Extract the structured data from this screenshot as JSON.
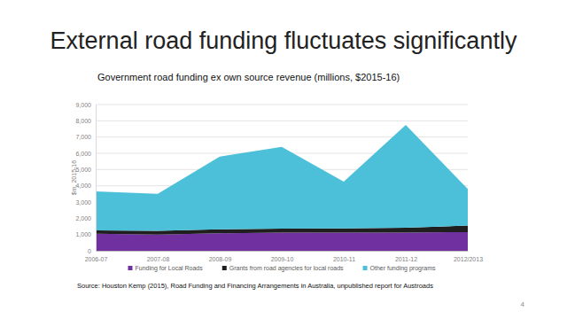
{
  "slide": {
    "title": "External road funding fluctuates significantly",
    "source": "Source: Houston Kemp (2015), Road Funding and Financing Arrangements in Australia, unpublished report for Austroads",
    "page_number": 4
  },
  "chart_data": {
    "type": "area",
    "title": "Government road funding ex own source revenue (millions, $2015-16)",
    "y_label": "$m, 2015-16",
    "categories": [
      "2006-07",
      "2007-08",
      "2008-09",
      "2009-10",
      "2010-11",
      "2011-12",
      "2012/2013"
    ],
    "series": [
      {
        "name": "Funding for Local Roads",
        "color": "#7030a0",
        "values": [
          1050,
          1000,
          1080,
          1120,
          1120,
          1120,
          1150
        ]
      },
      {
        "name": "Grants from road agencies for local roads",
        "color": "#1f1f1f",
        "values": [
          200,
          230,
          240,
          250,
          260,
          300,
          400
        ]
      },
      {
        "name": "Other funding programs",
        "color": "#4bc0d8",
        "values": [
          2400,
          2270,
          4480,
          5030,
          2870,
          6330,
          2250
        ]
      }
    ],
    "stacked": true,
    "grid": true,
    "legend": "bottom",
    "ylim": [
      0,
      9000
    ],
    "yticks": [
      0,
      {
        "value": 1000,
        "label": "1,000"
      },
      {
        "value": 2000,
        "label": "2,000"
      },
      {
        "value": 3000,
        "label": "3,000"
      },
      {
        "value": 4000,
        "label": "4,000"
      },
      {
        "value": 5000,
        "label": "5,000"
      },
      {
        "value": 6000,
        "label": "6,000"
      },
      {
        "value": 7000,
        "label": "7,000"
      },
      {
        "value": 8000,
        "label": "8,000"
      },
      {
        "value": 9000,
        "label": "9,000"
      }
    ]
  }
}
